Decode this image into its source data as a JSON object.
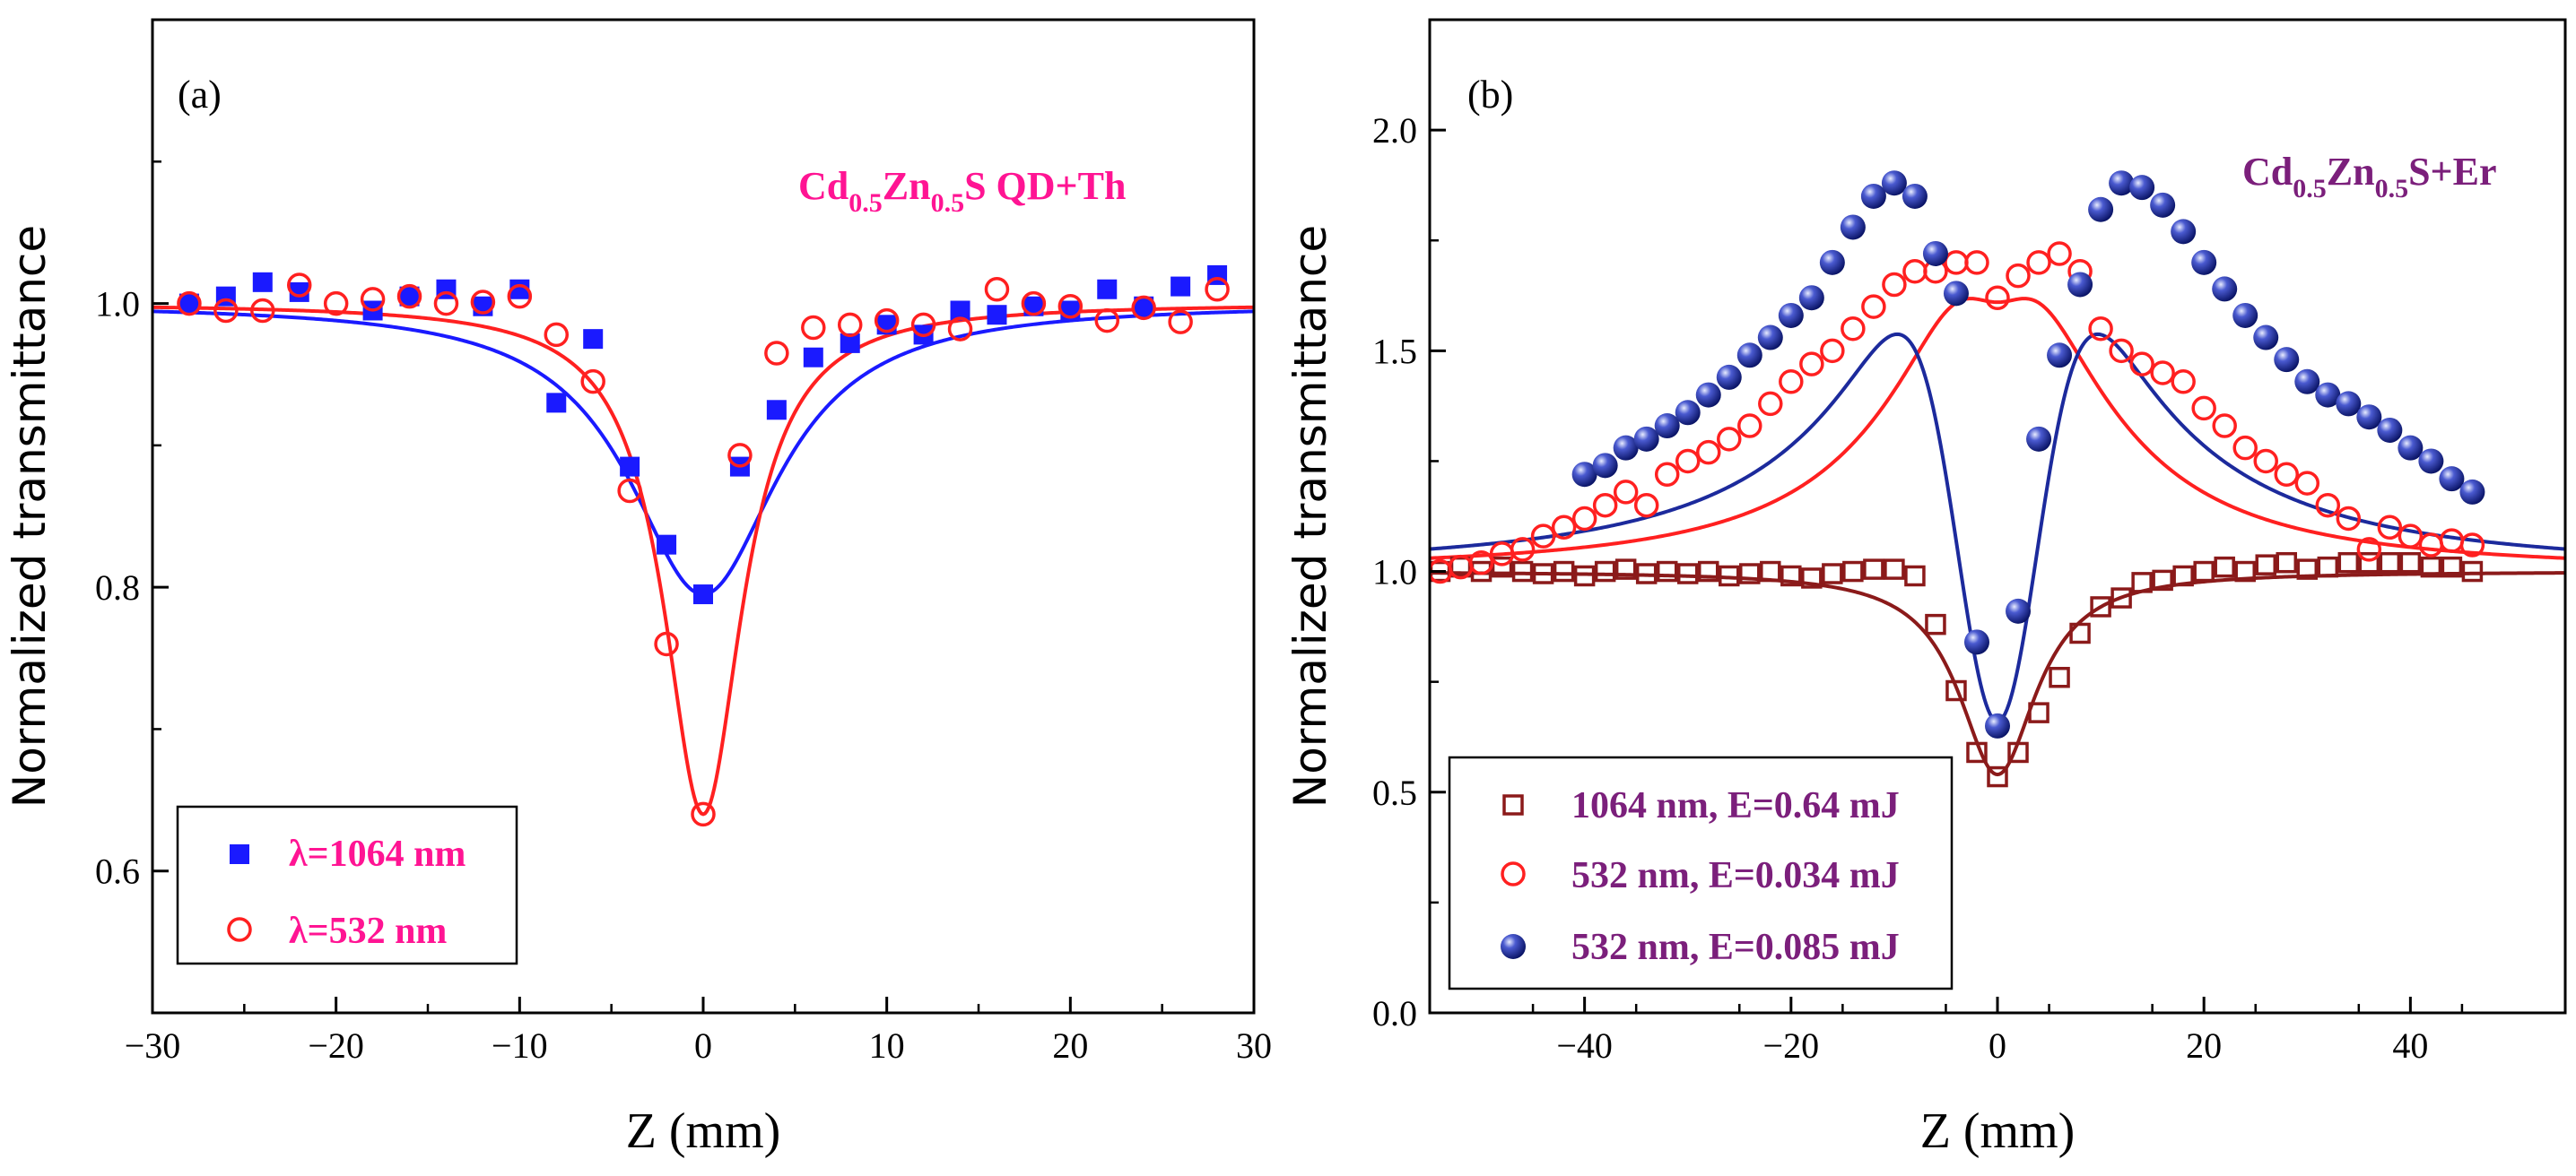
{
  "chart_data": [
    {
      "id": "a",
      "type": "scatter",
      "panel_label": "(a)",
      "sample": {
        "base": "Cd",
        "sub1": "0.5",
        "mid": "Zn",
        "sub2": "0.5",
        "tail": "S QD+Th"
      },
      "xlabel": "Z (mm)",
      "ylabel": "Normalized transmittance",
      "xlim": [
        -30,
        30
      ],
      "ylim": [
        0.5,
        1.2
      ],
      "xticks": [
        -30,
        -20,
        -10,
        0,
        10,
        20,
        30
      ],
      "xtick_labels": [
        "−30",
        "−20",
        "−10",
        "0",
        "10",
        "20",
        "30"
      ],
      "yticks": [
        0.6,
        0.8,
        1.0
      ],
      "ytick_labels": [
        "0.6",
        "0.8",
        "1.0"
      ],
      "grid": false,
      "legend_position": "bottom-left",
      "colors": {
        "text_accent": "#ff1493"
      },
      "series": [
        {
          "name": "λ=1064 nm",
          "marker": "filled-square",
          "color": "#1a1aff",
          "points": [
            [
              -28,
              1.0
            ],
            [
              -26,
              1.005
            ],
            [
              -24,
              1.015
            ],
            [
              -22,
              1.008
            ],
            [
              -18,
              0.995
            ],
            [
              -16,
              1.005
            ],
            [
              -14,
              1.01
            ],
            [
              -12,
              0.998
            ],
            [
              -10,
              1.01
            ],
            [
              -8,
              0.93
            ],
            [
              -6,
              0.975
            ],
            [
              -4,
              0.885
            ],
            [
              -2,
              0.83
            ],
            [
              0,
              0.795
            ],
            [
              2,
              0.885
            ],
            [
              4,
              0.925
            ],
            [
              6,
              0.962
            ],
            [
              8,
              0.972
            ],
            [
              10,
              0.985
            ],
            [
              12,
              0.978
            ],
            [
              14,
              0.995
            ],
            [
              16,
              0.992
            ],
            [
              18,
              0.998
            ],
            [
              20,
              0.995
            ],
            [
              22,
              1.01
            ],
            [
              24,
              0.998
            ],
            [
              26,
              1.012
            ],
            [
              28,
              1.02
            ]
          ]
        },
        {
          "name": "λ=532 nm",
          "marker": "open-circle",
          "color": "#ff2020",
          "points": [
            [
              -28,
              1.0
            ],
            [
              -26,
              0.995
            ],
            [
              -24,
              0.995
            ],
            [
              -22,
              1.013
            ],
            [
              -20,
              1.0
            ],
            [
              -18,
              1.003
            ],
            [
              -16,
              1.005
            ],
            [
              -14,
              1.0
            ],
            [
              -12,
              1.001
            ],
            [
              -10,
              1.005
            ],
            [
              -8,
              0.978
            ],
            [
              -6,
              0.945
            ],
            [
              -4,
              0.868
            ],
            [
              -2,
              0.76
            ],
            [
              0,
              0.64
            ],
            [
              2,
              0.893
            ],
            [
              4,
              0.965
            ],
            [
              6,
              0.983
            ],
            [
              8,
              0.985
            ],
            [
              10,
              0.988
            ],
            [
              12,
              0.985
            ],
            [
              14,
              0.982
            ],
            [
              16,
              1.01
            ],
            [
              18,
              1.0
            ],
            [
              20,
              0.998
            ],
            [
              22,
              0.988
            ],
            [
              24,
              0.997
            ],
            [
              26,
              0.987
            ],
            [
              28,
              1.01
            ]
          ]
        }
      ],
      "fits": [
        {
          "series": "λ=1064 nm",
          "model": "dip",
          "z0": 5,
          "depth": 0.205,
          "color": "#1a1aff"
        },
        {
          "series": "λ=532 nm",
          "model": "dip",
          "z0": 2.6,
          "depth": 0.36,
          "color": "#ff2020"
        }
      ]
    },
    {
      "id": "b",
      "type": "scatter",
      "panel_label": "(b)",
      "sample": {
        "base": "Cd",
        "sub1": "0.5",
        "mid": "Zn",
        "sub2": "0.5",
        "tail": "S+Er"
      },
      "xlabel": "Z (mm)",
      "ylabel": "Normalized transmittance",
      "xlim": [
        -55,
        55
      ],
      "ylim": [
        0.0,
        2.25
      ],
      "xticks": [
        -40,
        -20,
        0,
        20,
        40
      ],
      "xtick_labels": [
        "−40",
        "−20",
        "0",
        "20",
        "40"
      ],
      "yticks": [
        0.0,
        0.5,
        1.0,
        1.5,
        2.0
      ],
      "ytick_labels": [
        "0.0",
        "0.5",
        "1.0",
        "1.5",
        "2.0"
      ],
      "grid": false,
      "legend_position": "bottom-left",
      "colors": {
        "text_accent": "#7b1f7b"
      },
      "series": [
        {
          "name": "1064 nm, E=0.64 mJ",
          "marker": "open-square",
          "color": "#8b1a1a",
          "points": [
            [
              -54,
              1.0
            ],
            [
              -52,
              1.01
            ],
            [
              -50,
              1.0
            ],
            [
              -48,
              1.01
            ],
            [
              -46,
              1.0
            ],
            [
              -44,
              0.995
            ],
            [
              -42,
              1.0
            ],
            [
              -40,
              0.99
            ],
            [
              -38,
              1.0
            ],
            [
              -36,
              1.005
            ],
            [
              -34,
              0.995
            ],
            [
              -32,
              1.0
            ],
            [
              -30,
              0.995
            ],
            [
              -28,
              1.0
            ],
            [
              -26,
              0.99
            ],
            [
              -24,
              0.995
            ],
            [
              -22,
              1.0
            ],
            [
              -20,
              0.99
            ],
            [
              -18,
              0.985
            ],
            [
              -16,
              0.995
            ],
            [
              -14,
              1.0
            ],
            [
              -12,
              1.005
            ],
            [
              -10,
              1.005
            ],
            [
              -8,
              0.99
            ],
            [
              -6,
              0.88
            ],
            [
              -4,
              0.73
            ],
            [
              -2,
              0.59
            ],
            [
              0,
              0.535
            ],
            [
              2,
              0.59
            ],
            [
              4,
              0.68
            ],
            [
              6,
              0.76
            ],
            [
              8,
              0.86
            ],
            [
              10,
              0.92
            ],
            [
              12,
              0.94
            ],
            [
              14,
              0.975
            ],
            [
              16,
              0.98
            ],
            [
              18,
              0.99
            ],
            [
              20,
              1.0
            ],
            [
              22,
              1.01
            ],
            [
              24,
              1.0
            ],
            [
              26,
              1.015
            ],
            [
              28,
              1.02
            ],
            [
              30,
              1.005
            ],
            [
              32,
              1.01
            ],
            [
              34,
              1.02
            ],
            [
              36,
              1.02
            ],
            [
              38,
              1.02
            ],
            [
              40,
              1.02
            ],
            [
              42,
              1.01
            ],
            [
              44,
              1.01
            ],
            [
              46,
              1.0
            ]
          ]
        },
        {
          "name": "532 nm, E=0.034 mJ",
          "marker": "open-circle",
          "color": "#ff2020",
          "points": [
            [
              -54,
              1.0
            ],
            [
              -52,
              1.01
            ],
            [
              -50,
              1.02
            ],
            [
              -48,
              1.04
            ],
            [
              -46,
              1.05
            ],
            [
              -44,
              1.08
            ],
            [
              -42,
              1.1
            ],
            [
              -40,
              1.12
            ],
            [
              -38,
              1.15
            ],
            [
              -36,
              1.18
            ],
            [
              -34,
              1.15
            ],
            [
              -32,
              1.22
            ],
            [
              -30,
              1.25
            ],
            [
              -28,
              1.27
            ],
            [
              -26,
              1.3
            ],
            [
              -24,
              1.33
            ],
            [
              -22,
              1.38
            ],
            [
              -20,
              1.43
            ],
            [
              -18,
              1.47
            ],
            [
              -16,
              1.5
            ],
            [
              -14,
              1.55
            ],
            [
              -12,
              1.6
            ],
            [
              -10,
              1.65
            ],
            [
              -8,
              1.68
            ],
            [
              -6,
              1.68
            ],
            [
              -4,
              1.7
            ],
            [
              -2,
              1.7
            ],
            [
              0,
              1.62
            ],
            [
              2,
              1.67
            ],
            [
              4,
              1.7
            ],
            [
              6,
              1.72
            ],
            [
              8,
              1.68
            ],
            [
              10,
              1.55
            ],
            [
              12,
              1.5
            ],
            [
              14,
              1.47
            ],
            [
              16,
              1.45
            ],
            [
              18,
              1.43
            ],
            [
              20,
              1.37
            ],
            [
              22,
              1.33
            ],
            [
              24,
              1.28
            ],
            [
              26,
              1.25
            ],
            [
              28,
              1.22
            ],
            [
              30,
              1.2
            ],
            [
              32,
              1.15
            ],
            [
              34,
              1.12
            ],
            [
              36,
              1.05
            ],
            [
              38,
              1.1
            ],
            [
              40,
              1.08
            ],
            [
              42,
              1.06
            ],
            [
              44,
              1.07
            ],
            [
              46,
              1.06
            ]
          ]
        },
        {
          "name": "532 nm, E=0.085 mJ",
          "marker": "sphere",
          "color": "#1c2a9c",
          "points": [
            [
              -40,
              1.22
            ],
            [
              -38,
              1.24
            ],
            [
              -36,
              1.28
            ],
            [
              -34,
              1.3
            ],
            [
              -32,
              1.33
            ],
            [
              -30,
              1.36
            ],
            [
              -28,
              1.4
            ],
            [
              -26,
              1.44
            ],
            [
              -24,
              1.49
            ],
            [
              -22,
              1.53
            ],
            [
              -20,
              1.58
            ],
            [
              -18,
              1.62
            ],
            [
              -16,
              1.7
            ],
            [
              -14,
              1.78
            ],
            [
              -12,
              1.85
            ],
            [
              -10,
              1.88
            ],
            [
              -8,
              1.85
            ],
            [
              -6,
              1.72
            ],
            [
              -4,
              1.63
            ],
            [
              -2,
              0.84
            ],
            [
              0,
              0.65
            ],
            [
              2,
              0.91
            ],
            [
              4,
              1.3
            ],
            [
              6,
              1.49
            ],
            [
              8,
              1.65
            ],
            [
              10,
              1.82
            ],
            [
              12,
              1.88
            ],
            [
              14,
              1.87
            ],
            [
              16,
              1.83
            ],
            [
              18,
              1.77
            ],
            [
              20,
              1.7
            ],
            [
              22,
              1.64
            ],
            [
              24,
              1.58
            ],
            [
              26,
              1.53
            ],
            [
              28,
              1.48
            ],
            [
              30,
              1.43
            ],
            [
              32,
              1.4
            ],
            [
              34,
              1.38
            ],
            [
              36,
              1.35
            ],
            [
              38,
              1.32
            ],
            [
              40,
              1.28
            ],
            [
              42,
              1.25
            ],
            [
              44,
              1.21
            ],
            [
              46,
              1.18
            ]
          ]
        }
      ],
      "fits": [
        {
          "series": "1064 nm, E=0.64 mJ",
          "model": "dip",
          "z0": 4.6,
          "depth": 0.46,
          "color": "#8b1a1a"
        },
        {
          "series": "532 nm, E=0.034 mJ",
          "model": "peak-dip",
          "z0": 11.5,
          "peak_amp": 0.72,
          "dip_amp": 0.11,
          "dip_width": 2.6,
          "color": "#ff2020"
        },
        {
          "series": "532 nm, E=0.085 mJ",
          "model": "peak-dip",
          "z0": 13,
          "peak_amp": 0.96,
          "dip_amp": 1.3,
          "dip_width": 4.1,
          "color": "#1c2a9c"
        }
      ]
    }
  ]
}
